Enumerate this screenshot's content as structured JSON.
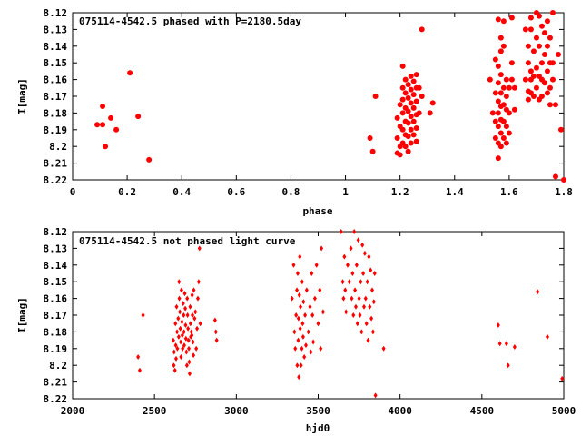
{
  "chart_data": [
    {
      "type": "scatter",
      "title": "075114-4542.5 phased with P=2180.5day",
      "xlabel": "phase",
      "ylabel": "I[mag]",
      "xlim": [
        0,
        1.8
      ],
      "ylim": [
        8.12,
        8.22
      ],
      "y_reversed": true,
      "grid": false,
      "marker_color": "#ff0000",
      "marker": "filled-circle",
      "xticks": [
        "0",
        "0.2",
        "0.4",
        "0.6",
        "0.8",
        "1",
        "1.2",
        "1.4",
        "1.6",
        "1.8"
      ],
      "yticks": [
        "8.12",
        "8.13",
        "8.14",
        "8.15",
        "8.16",
        "8.17",
        "8.18",
        "8.19",
        "8.2",
        "8.21",
        "8.22"
      ],
      "points": [
        [
          0.09,
          8.187
        ],
        [
          0.11,
          8.187
        ],
        [
          0.11,
          8.176
        ],
        [
          0.12,
          8.2
        ],
        [
          0.14,
          8.183
        ],
        [
          0.16,
          8.19
        ],
        [
          0.21,
          8.156
        ],
        [
          0.24,
          8.182
        ],
        [
          0.28,
          8.208
        ],
        [
          1.09,
          8.195
        ],
        [
          1.1,
          8.203
        ],
        [
          1.11,
          8.17
        ],
        [
          1.19,
          8.183
        ],
        [
          1.19,
          8.195
        ],
        [
          1.19,
          8.204
        ],
        [
          1.2,
          8.175
        ],
        [
          1.2,
          8.188
        ],
        [
          1.2,
          8.2
        ],
        [
          1.2,
          8.205
        ],
        [
          1.21,
          8.152
        ],
        [
          1.21,
          8.165
        ],
        [
          1.21,
          8.172
        ],
        [
          1.21,
          8.18
        ],
        [
          1.21,
          8.19
        ],
        [
          1.21,
          8.198
        ],
        [
          1.22,
          8.16
        ],
        [
          1.22,
          8.168
        ],
        [
          1.22,
          8.177
        ],
        [
          1.22,
          8.185
        ],
        [
          1.22,
          8.193
        ],
        [
          1.22,
          8.2
        ],
        [
          1.23,
          8.163
        ],
        [
          1.23,
          8.171
        ],
        [
          1.23,
          8.179
        ],
        [
          1.23,
          8.186
        ],
        [
          1.23,
          8.194
        ],
        [
          1.23,
          8.203
        ],
        [
          1.24,
          8.158
        ],
        [
          1.24,
          8.166
        ],
        [
          1.24,
          8.174
        ],
        [
          1.24,
          8.182
        ],
        [
          1.24,
          8.19
        ],
        [
          1.24,
          8.198
        ],
        [
          1.25,
          8.161
        ],
        [
          1.25,
          8.169
        ],
        [
          1.25,
          8.177
        ],
        [
          1.25,
          8.185
        ],
        [
          1.25,
          8.193
        ],
        [
          1.26,
          8.157
        ],
        [
          1.26,
          8.165
        ],
        [
          1.26,
          8.173
        ],
        [
          1.26,
          8.181
        ],
        [
          1.26,
          8.189
        ],
        [
          1.26,
          8.197
        ],
        [
          1.27,
          8.165
        ],
        [
          1.27,
          8.18
        ],
        [
          1.28,
          8.13
        ],
        [
          1.28,
          8.17
        ],
        [
          1.32,
          8.174
        ],
        [
          1.31,
          8.18
        ],
        [
          1.53,
          8.16
        ],
        [
          1.54,
          8.18
        ],
        [
          1.55,
          8.148
        ],
        [
          1.55,
          8.168
        ],
        [
          1.55,
          8.185
        ],
        [
          1.55,
          8.195
        ],
        [
          1.56,
          8.124
        ],
        [
          1.56,
          8.152
        ],
        [
          1.56,
          8.162
        ],
        [
          1.56,
          8.173
        ],
        [
          1.56,
          8.18
        ],
        [
          1.56,
          8.188
        ],
        [
          1.56,
          8.198
        ],
        [
          1.56,
          8.207
        ],
        [
          1.57,
          8.135
        ],
        [
          1.57,
          8.143
        ],
        [
          1.57,
          8.157
        ],
        [
          1.57,
          8.168
        ],
        [
          1.57,
          8.176
        ],
        [
          1.57,
          8.184
        ],
        [
          1.57,
          8.192
        ],
        [
          1.57,
          8.2
        ],
        [
          1.58,
          8.125
        ],
        [
          1.58,
          8.14
        ],
        [
          1.58,
          8.165
        ],
        [
          1.58,
          8.175
        ],
        [
          1.58,
          8.185
        ],
        [
          1.58,
          8.195
        ],
        [
          1.59,
          8.16
        ],
        [
          1.59,
          8.17
        ],
        [
          1.59,
          8.178
        ],
        [
          1.59,
          8.188
        ],
        [
          1.59,
          8.198
        ],
        [
          1.6,
          8.165
        ],
        [
          1.6,
          8.18
        ],
        [
          1.6,
          8.192
        ],
        [
          1.61,
          8.123
        ],
        [
          1.61,
          8.15
        ],
        [
          1.61,
          8.16
        ],
        [
          1.62,
          8.165
        ],
        [
          1.62,
          8.178
        ],
        [
          1.66,
          8.13
        ],
        [
          1.66,
          8.16
        ],
        [
          1.67,
          8.14
        ],
        [
          1.67,
          8.15
        ],
        [
          1.67,
          8.167
        ],
        [
          1.67,
          8.172
        ],
        [
          1.68,
          8.123
        ],
        [
          1.68,
          8.13
        ],
        [
          1.68,
          8.155
        ],
        [
          1.68,
          8.16
        ],
        [
          1.68,
          8.168
        ],
        [
          1.69,
          8.143
        ],
        [
          1.69,
          8.158
        ],
        [
          1.69,
          8.17
        ],
        [
          1.7,
          8.12
        ],
        [
          1.7,
          8.135
        ],
        [
          1.7,
          8.153
        ],
        [
          1.7,
          8.165
        ],
        [
          1.71,
          8.122
        ],
        [
          1.71,
          8.14
        ],
        [
          1.71,
          8.158
        ],
        [
          1.71,
          8.172
        ],
        [
          1.72,
          8.128
        ],
        [
          1.72,
          8.15
        ],
        [
          1.72,
          8.16
        ],
        [
          1.72,
          8.17
        ],
        [
          1.73,
          8.132
        ],
        [
          1.73,
          8.145
        ],
        [
          1.73,
          8.162
        ],
        [
          1.74,
          8.125
        ],
        [
          1.74,
          8.14
        ],
        [
          1.74,
          8.155
        ],
        [
          1.74,
          8.168
        ],
        [
          1.75,
          8.135
        ],
        [
          1.75,
          8.15
        ],
        [
          1.75,
          8.165
        ],
        [
          1.75,
          8.175
        ],
        [
          1.76,
          8.12
        ],
        [
          1.76,
          8.15
        ],
        [
          1.76,
          8.16
        ],
        [
          1.77,
          8.175
        ],
        [
          1.77,
          8.218
        ],
        [
          1.78,
          8.145
        ],
        [
          1.79,
          8.19
        ],
        [
          1.8,
          8.22
        ]
      ]
    },
    {
      "type": "scatter",
      "title": "075114-4542.5 not phased light curve",
      "xlabel": "hjd0",
      "ylabel": "I[mag]",
      "xlim": [
        2000,
        5000
      ],
      "ylim": [
        8.12,
        8.22
      ],
      "y_reversed": true,
      "grid": false,
      "marker_color": "#ff0000",
      "marker": "diamond",
      "xticks": [
        "2000",
        "2500",
        "3000",
        "3500",
        "4000",
        "4500",
        "5000"
      ],
      "yticks": [
        "8.12",
        "8.13",
        "8.14",
        "8.15",
        "8.16",
        "8.17",
        "8.18",
        "8.19",
        "8.2",
        "8.21",
        "8.22"
      ],
      "points": [
        [
          2400,
          8.195
        ],
        [
          2410,
          8.203
        ],
        [
          2430,
          8.17
        ],
        [
          2615,
          8.185
        ],
        [
          2618,
          8.2
        ],
        [
          2620,
          8.192
        ],
        [
          2625,
          8.203
        ],
        [
          2628,
          8.175
        ],
        [
          2630,
          8.188
        ],
        [
          2632,
          8.196
        ],
        [
          2635,
          8.165
        ],
        [
          2638,
          8.18
        ],
        [
          2640,
          8.19
        ],
        [
          2645,
          8.172
        ],
        [
          2648,
          8.183
        ],
        [
          2650,
          8.15
        ],
        [
          2652,
          8.16
        ],
        [
          2655,
          8.168
        ],
        [
          2658,
          8.178
        ],
        [
          2660,
          8.186
        ],
        [
          2662,
          8.195
        ],
        [
          2665,
          8.155
        ],
        [
          2668,
          8.174
        ],
        [
          2670,
          8.182
        ],
        [
          2672,
          8.19
        ],
        [
          2675,
          8.163
        ],
        [
          2678,
          8.17
        ],
        [
          2680,
          8.18
        ],
        [
          2682,
          8.188
        ],
        [
          2685,
          8.157
        ],
        [
          2688,
          8.166
        ],
        [
          2690,
          8.176
        ],
        [
          2692,
          8.184
        ],
        [
          2695,
          8.192
        ],
        [
          2698,
          8.2
        ],
        [
          2700,
          8.16
        ],
        [
          2702,
          8.17
        ],
        [
          2705,
          8.178
        ],
        [
          2708,
          8.185
        ],
        [
          2710,
          8.19
        ],
        [
          2712,
          8.198
        ],
        [
          2715,
          8.205
        ],
        [
          2718,
          8.165
        ],
        [
          2720,
          8.175
        ],
        [
          2722,
          8.183
        ],
        [
          2725,
          8.18
        ],
        [
          2728,
          8.182
        ],
        [
          2730,
          8.158
        ],
        [
          2732,
          8.17
        ],
        [
          2735,
          8.186
        ],
        [
          2738,
          8.194
        ],
        [
          2740,
          8.155
        ],
        [
          2745,
          8.172
        ],
        [
          2750,
          8.168
        ],
        [
          2755,
          8.19
        ],
        [
          2760,
          8.178
        ],
        [
          2765,
          8.16
        ],
        [
          2770,
          8.15
        ],
        [
          2775,
          8.13
        ],
        [
          2780,
          8.175
        ],
        [
          2870,
          8.173
        ],
        [
          2875,
          8.18
        ],
        [
          2880,
          8.185
        ],
        [
          3340,
          8.16
        ],
        [
          3350,
          8.14
        ],
        [
          3355,
          8.18
        ],
        [
          3360,
          8.19
        ],
        [
          3365,
          8.17
        ],
        [
          3370,
          8.155
        ],
        [
          3372,
          8.2
        ],
        [
          3375,
          8.145
        ],
        [
          3378,
          8.185
        ],
        [
          3380,
          8.172
        ],
        [
          3382,
          8.207
        ],
        [
          3385,
          8.158
        ],
        [
          3388,
          8.135
        ],
        [
          3390,
          8.178
        ],
        [
          3392,
          8.165
        ],
        [
          3395,
          8.2
        ],
        [
          3400,
          8.19
        ],
        [
          3402,
          8.15
        ],
        [
          3405,
          8.175
        ],
        [
          3408,
          8.183
        ],
        [
          3410,
          8.162
        ],
        [
          3415,
          8.195
        ],
        [
          3420,
          8.17
        ],
        [
          3425,
          8.188
        ],
        [
          3430,
          8.155
        ],
        [
          3440,
          8.18
        ],
        [
          3450,
          8.165
        ],
        [
          3455,
          8.192
        ],
        [
          3460,
          8.145
        ],
        [
          3465,
          8.17
        ],
        [
          3470,
          8.186
        ],
        [
          3480,
          8.16
        ],
        [
          3490,
          8.14
        ],
        [
          3500,
          8.175
        ],
        [
          3510,
          8.155
        ],
        [
          3515,
          8.19
        ],
        [
          3520,
          8.13
        ],
        [
          3530,
          8.168
        ],
        [
          3640,
          8.12
        ],
        [
          3650,
          8.15
        ],
        [
          3655,
          8.16
        ],
        [
          3660,
          8.135
        ],
        [
          3665,
          8.155
        ],
        [
          3670,
          8.168
        ],
        [
          3680,
          8.14
        ],
        [
          3690,
          8.15
        ],
        [
          3700,
          8.13
        ],
        [
          3705,
          8.16
        ],
        [
          3710,
          8.145
        ],
        [
          3715,
          8.17
        ],
        [
          3720,
          8.12
        ],
        [
          3725,
          8.155
        ],
        [
          3730,
          8.165
        ],
        [
          3735,
          8.14
        ],
        [
          3740,
          8.175
        ],
        [
          3745,
          8.125
        ],
        [
          3750,
          8.16
        ],
        [
          3755,
          8.17
        ],
        [
          3760,
          8.15
        ],
        [
          3765,
          8.18
        ],
        [
          3770,
          8.128
        ],
        [
          3775,
          8.145
        ],
        [
          3780,
          8.165
        ],
        [
          3785,
          8.133
        ],
        [
          3790,
          8.16
        ],
        [
          3795,
          8.175
        ],
        [
          3800,
          8.15
        ],
        [
          3805,
          8.185
        ],
        [
          3810,
          8.135
        ],
        [
          3815,
          8.165
        ],
        [
          3820,
          8.143
        ],
        [
          3825,
          8.172
        ],
        [
          3830,
          8.155
        ],
        [
          3835,
          8.18
        ],
        [
          3840,
          8.162
        ],
        [
          3845,
          8.145
        ],
        [
          3850,
          8.218
        ],
        [
          3900,
          8.19
        ],
        [
          4600,
          8.176
        ],
        [
          4610,
          8.187
        ],
        [
          4650,
          8.187
        ],
        [
          4660,
          8.2
        ],
        [
          4700,
          8.189
        ],
        [
          4840,
          8.156
        ],
        [
          4900,
          8.183
        ],
        [
          4990,
          8.208
        ]
      ]
    }
  ]
}
